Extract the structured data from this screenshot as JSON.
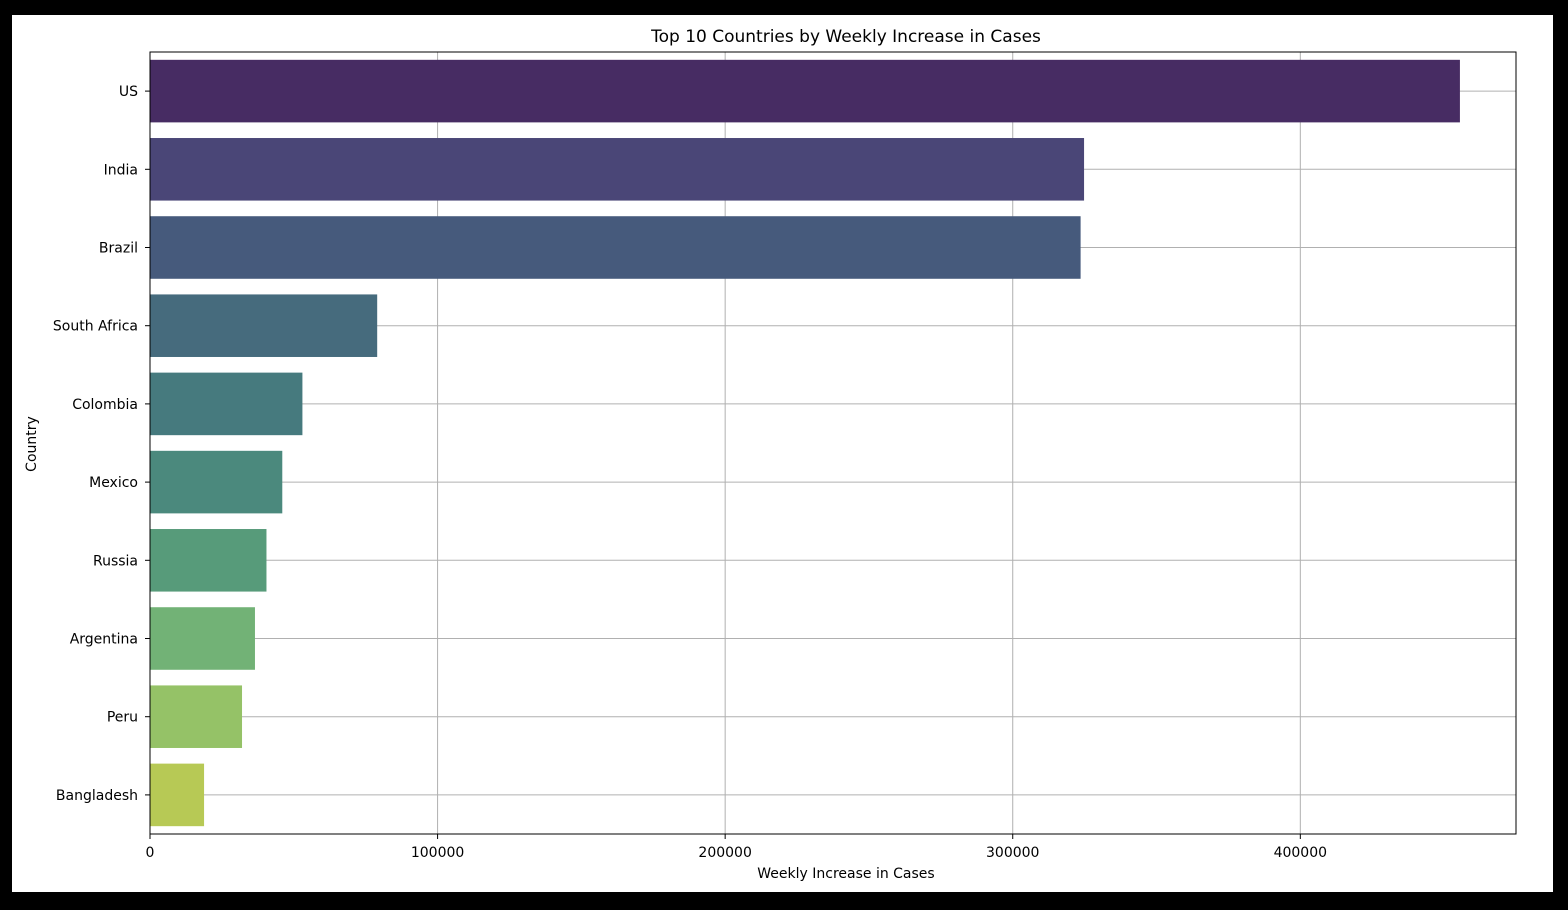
{
  "chart_data": {
    "type": "bar",
    "orientation": "horizontal",
    "title": "Top 10 Countries by Weekly Increase in Cases",
    "xlabel": "Weekly Increase in Cases",
    "ylabel": "Country",
    "xlim": [
      0,
      475000
    ],
    "xticks": [
      0,
      100000,
      200000,
      300000,
      400000
    ],
    "xtick_labels": [
      "0",
      "100000",
      "200000",
      "300000",
      "400000"
    ],
    "grid": true,
    "categories": [
      "US",
      "India",
      "Brazil",
      "South Africa",
      "Colombia",
      "Mexico",
      "Russia",
      "Argentina",
      "Peru",
      "Bangladesh"
    ],
    "values": [
      455500,
      324800,
      323600,
      79000,
      53000,
      46000,
      40500,
      36500,
      32000,
      18800
    ],
    "colors": [
      "#472c63",
      "#4a4677",
      "#465a7c",
      "#466b7d",
      "#467a7e",
      "#4b897d",
      "#579b7a",
      "#72b276",
      "#95c267",
      "#b7c955"
    ]
  }
}
